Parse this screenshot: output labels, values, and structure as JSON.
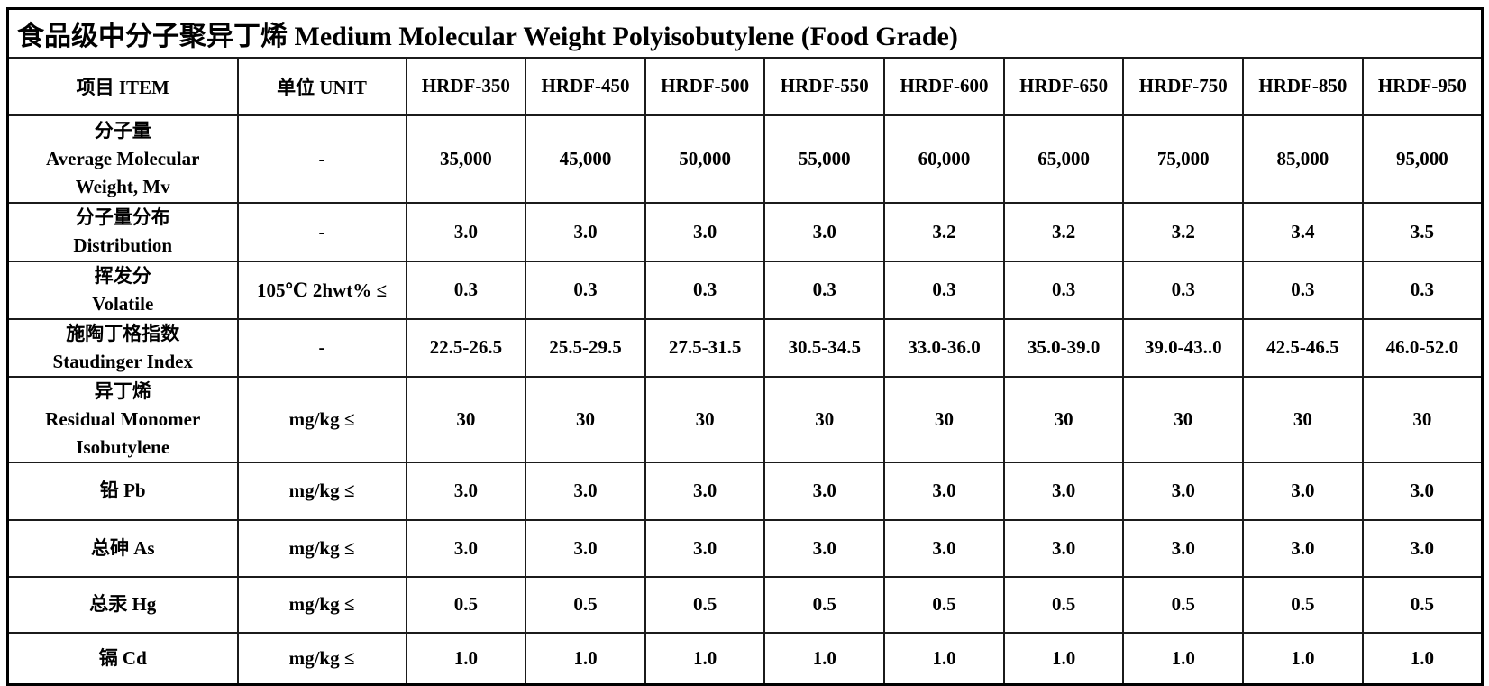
{
  "title": "食品级中分子聚异丁烯 Medium Molecular Weight Polyisobutylene (Food Grade)",
  "table": {
    "header": [
      "项目 ITEM",
      "单位 UNIT",
      "HRDF-350",
      "HRDF-450",
      "HRDF-500",
      "HRDF-550",
      "HRDF-600",
      "HRDF-650",
      "HRDF-750",
      "HRDF-850",
      "HRDF-950"
    ],
    "rows": [
      {
        "item_lines": [
          "分子量",
          "Average Molecular",
          "Weight, Mv"
        ],
        "unit": "-",
        "values": [
          "35,000",
          "45,000",
          "50,000",
          "55,000",
          "60,000",
          "65,000",
          "75,000",
          "85,000",
          "95,000"
        ]
      },
      {
        "item_lines": [
          "分子量分布",
          "Distribution"
        ],
        "unit": "-",
        "values": [
          "3.0",
          "3.0",
          "3.0",
          "3.0",
          "3.2",
          "3.2",
          "3.2",
          "3.4",
          "3.5"
        ]
      },
      {
        "item_lines": [
          "挥发分",
          "Volatile"
        ],
        "unit": "105℃ 2hwt% ≤",
        "values": [
          "0.3",
          "0.3",
          "0.3",
          "0.3",
          "0.3",
          "0.3",
          "0.3",
          "0.3",
          "0.3"
        ]
      },
      {
        "item_lines": [
          "施陶丁格指数",
          "Staudinger Index"
        ],
        "unit": "-",
        "values": [
          "22.5-26.5",
          "25.5-29.5",
          "27.5-31.5",
          "30.5-34.5",
          "33.0-36.0",
          "35.0-39.0",
          "39.0-43..0",
          "42.5-46.5",
          "46.0-52.0"
        ]
      },
      {
        "item_lines": [
          "异丁烯",
          "Residual Monomer",
          "Isobutylene"
        ],
        "unit": "mg/kg ≤",
        "values": [
          "30",
          "30",
          "30",
          "30",
          "30",
          "30",
          "30",
          "30",
          "30"
        ]
      },
      {
        "item_lines": [
          "铅 Pb"
        ],
        "unit": "mg/kg ≤",
        "values": [
          "3.0",
          "3.0",
          "3.0",
          "3.0",
          "3.0",
          "3.0",
          "3.0",
          "3.0",
          "3.0"
        ]
      },
      {
        "item_lines": [
          "总砷 As"
        ],
        "unit": "mg/kg ≤",
        "values": [
          "3.0",
          "3.0",
          "3.0",
          "3.0",
          "3.0",
          "3.0",
          "3.0",
          "3.0",
          "3.0"
        ]
      },
      {
        "item_lines": [
          "总汞 Hg"
        ],
        "unit": "mg/kg ≤",
        "values": [
          "0.5",
          "0.5",
          "0.5",
          "0.5",
          "0.5",
          "0.5",
          "0.5",
          "0.5",
          "0.5"
        ]
      },
      {
        "item_lines": [
          "镉 Cd"
        ],
        "unit": "mg/kg ≤",
        "values": [
          "1.0",
          "1.0",
          "1.0",
          "1.0",
          "1.0",
          "1.0",
          "1.0",
          "1.0",
          "1.0"
        ]
      }
    ]
  }
}
